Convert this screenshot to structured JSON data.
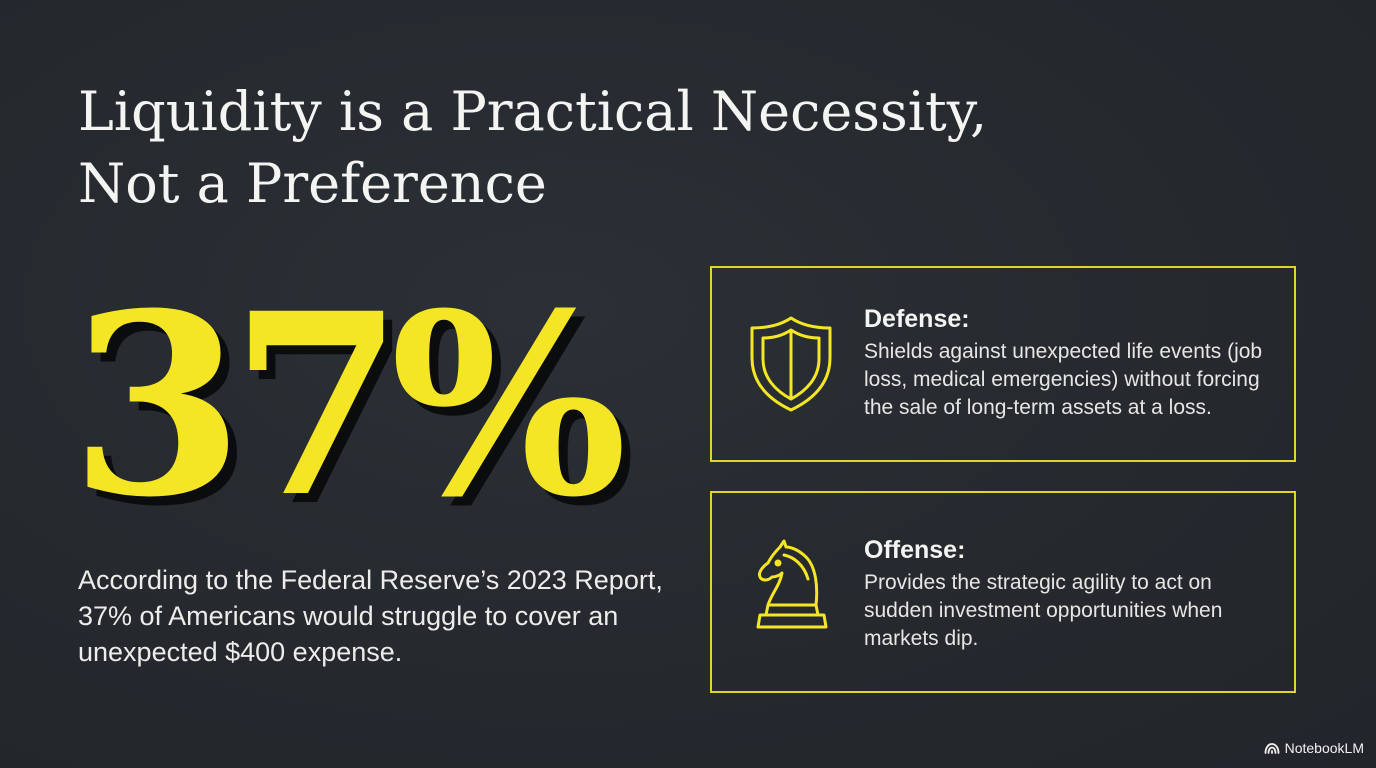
{
  "title": {
    "line1": "Liquidity is a Practical Necessity,",
    "line2": "Not a Preference"
  },
  "stat": {
    "value": "37%",
    "description": "According to the Federal Reserve’s 2023 Report, 37% of Americans would struggle to cover an unexpected $400 expense."
  },
  "cards": [
    {
      "icon": "shield-icon",
      "heading": "Defense:",
      "body": "Shields against unexpected life events (job loss, medical emergencies) without forcing the sale of long-term assets at a loss."
    },
    {
      "icon": "chess-knight-icon",
      "heading": "Offense:",
      "body": "Provides the strategic agility to act on sudden investment opportunities when markets dip."
    }
  ],
  "brand": {
    "icon": "notebooklm-logo-icon",
    "label": "NotebookLM"
  },
  "colors": {
    "background": "#262a30",
    "accent": "#f5e625",
    "border": "#e3d42a",
    "text": "#f4f4f2"
  }
}
